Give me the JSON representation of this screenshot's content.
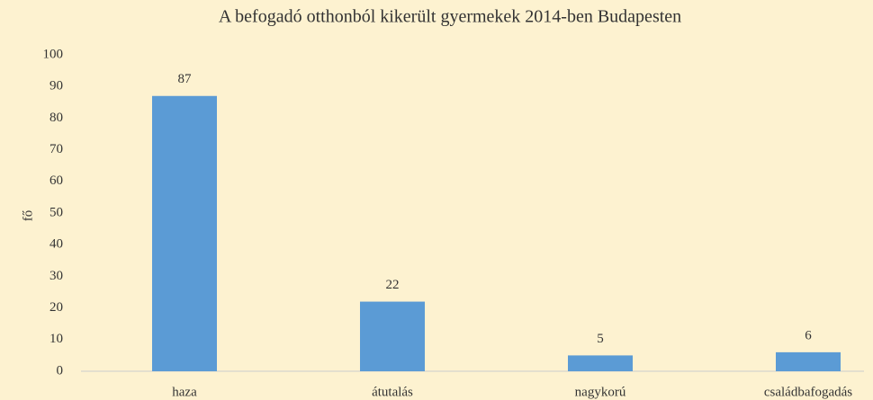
{
  "chart_data": {
    "type": "bar",
    "title": "A befogadó otthonból kikerült gyermekek 2014-ben Budapesten",
    "y_label": "fő",
    "categories": [
      "haza",
      "átutalás",
      "nagykorú",
      "családbafogadás"
    ],
    "values": [
      87,
      22,
      5,
      6
    ],
    "color": "#5b9bd5",
    "ylim": [
      0,
      100
    ],
    "yticks": [
      0,
      10,
      20,
      30,
      40,
      50,
      60,
      70,
      80,
      90,
      100
    ],
    "grid": false
  }
}
